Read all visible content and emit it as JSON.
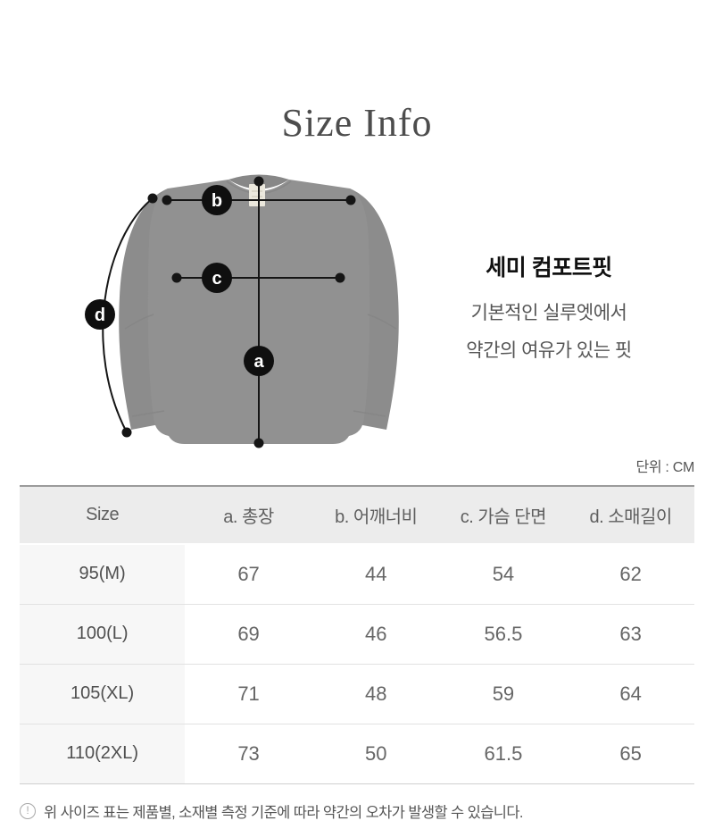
{
  "page": {
    "title": "Size Info"
  },
  "fit_info": {
    "heading": "세미 컴포트핏",
    "description_line1": "기본적인 실루엣에서",
    "description_line2": "약간의 여유가 있는 핏"
  },
  "diagram": {
    "markers": {
      "a": "a",
      "b": "b",
      "c": "c",
      "d": "d"
    }
  },
  "unit_label": "단위 : CM",
  "size_table": {
    "columns": [
      "Size",
      "a. 총장",
      "b. 어깨너비",
      "c. 가슴 단면",
      "d. 소매길이"
    ],
    "rows": [
      {
        "size": "95(M)",
        "values": [
          "67",
          "44",
          "54",
          "62"
        ]
      },
      {
        "size": "100(L)",
        "values": [
          "69",
          "46",
          "56.5",
          "63"
        ]
      },
      {
        "size": "105(XL)",
        "values": [
          "71",
          "48",
          "59",
          "64"
        ]
      },
      {
        "size": "110(2XL)",
        "values": [
          "73",
          "50",
          "61.5",
          "65"
        ]
      }
    ]
  },
  "footer_note": {
    "icon": "!",
    "text": "위 사이즈 표는 제품별, 소재별 측정 기준에 따라 약간의 오차가 발생할 수 있습니다."
  },
  "colors": {
    "shirt_body": "#919191",
    "shirt_sleeve": "#8c8c8c",
    "collar_shadow": "#878787",
    "neck_label": "#ebe8dd",
    "marker_bg": "#0f0f0f",
    "marker_text": "#ffffff",
    "table_header_bg": "#ececec"
  }
}
